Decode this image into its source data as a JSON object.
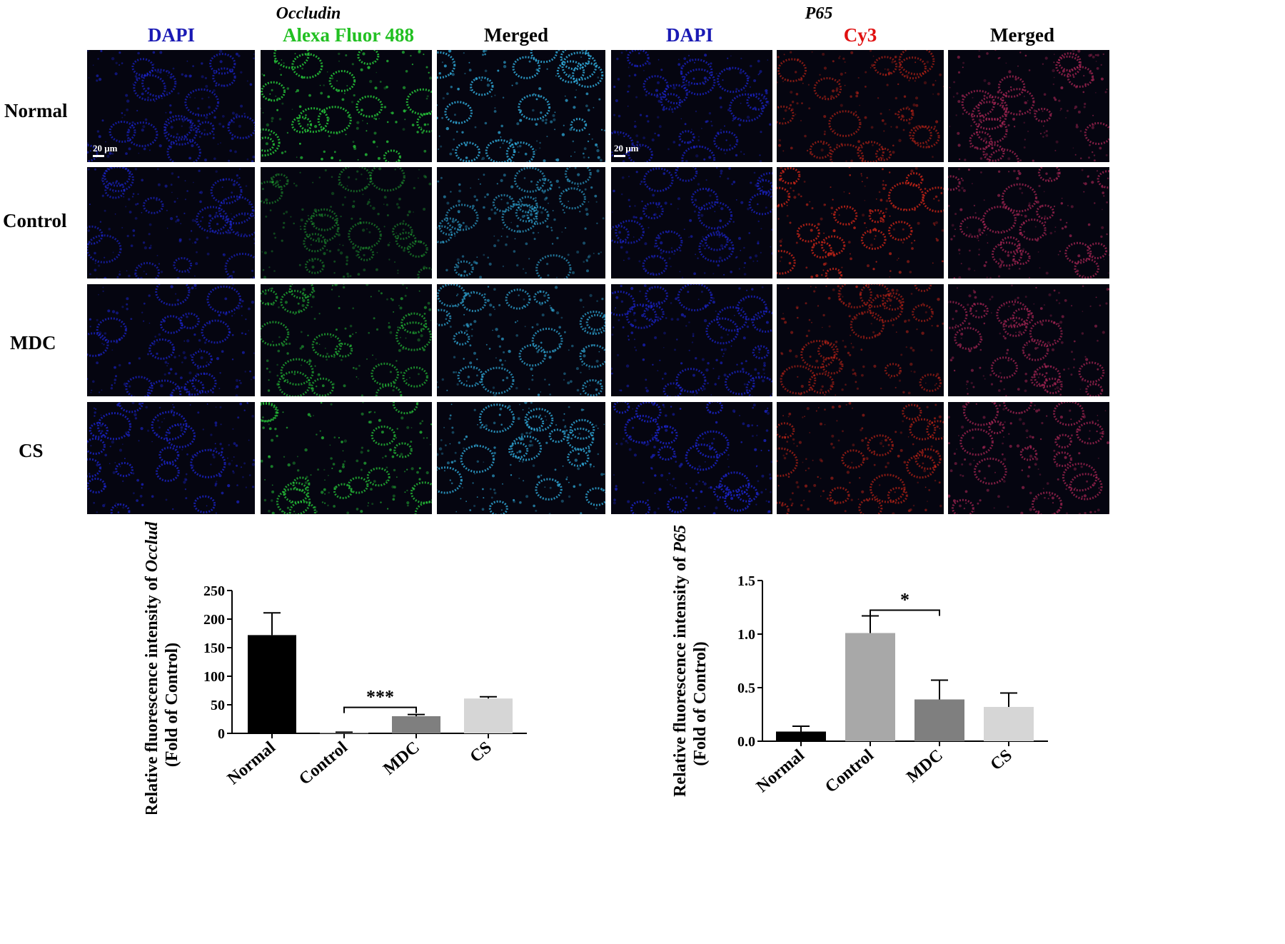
{
  "groups": [
    {
      "label": "Occludin",
      "channels": [
        {
          "label": "DAPI",
          "color": "#1a1ab4"
        },
        {
          "label": "Alexa Fluor 488",
          "color": "#22c022"
        },
        {
          "label": "Merged",
          "color": "#000000"
        }
      ]
    },
    {
      "label": "P65",
      "channels": [
        {
          "label": "DAPI",
          "color": "#1a1ab4"
        },
        {
          "label": "Cy3",
          "color": "#e01010"
        },
        {
          "label": "Merged",
          "color": "#000000"
        }
      ]
    }
  ],
  "rows": [
    "Normal",
    "Control",
    "MDC",
    "CS"
  ],
  "scale_bar": "20 μm",
  "micrograph_palettes": {
    "dapi": "#1e28e6",
    "alexa": "#28d23c",
    "merged_occludin": "#32b4e6",
    "cy3": "#dc2818",
    "merged_p65": "#b4285a"
  },
  "chart_data": [
    {
      "type": "bar",
      "title": "",
      "xlabel": "",
      "ylabel": [
        "Relative fluorescence intensity of ",
        "Occludin",
        "(Fold of Control)"
      ],
      "categories": [
        "Normal",
        "Control",
        "MDC",
        "CS"
      ],
      "values": [
        172,
        1,
        30,
        61
      ],
      "errors": [
        39,
        1,
        3,
        3
      ],
      "colors": [
        "#000000",
        "#a8a8a8",
        "#7f7f7f",
        "#d6d6d6"
      ],
      "ylim": [
        0,
        250
      ],
      "yticks": [
        "0",
        "50",
        "100",
        "150",
        "200",
        "250"
      ],
      "significance": {
        "from": "Control",
        "to": "MDC",
        "label": "***"
      }
    },
    {
      "type": "bar",
      "title": "",
      "xlabel": "",
      "ylabel": [
        "Relative fluorescence intensity of ",
        "P65",
        "(Fold of Control)"
      ],
      "categories": [
        "Normal",
        "Control",
        "MDC",
        "CS"
      ],
      "values": [
        0.09,
        1.01,
        0.39,
        0.32
      ],
      "errors": [
        0.05,
        0.16,
        0.18,
        0.13
      ],
      "colors": [
        "#000000",
        "#a8a8a8",
        "#7f7f7f",
        "#d6d6d6"
      ],
      "ylim": [
        0,
        1.5
      ],
      "yticks": [
        "0.0",
        "0.5",
        "1.0",
        "1.5"
      ],
      "significance": {
        "from": "Control",
        "to": "MDC",
        "label": "*"
      }
    }
  ]
}
